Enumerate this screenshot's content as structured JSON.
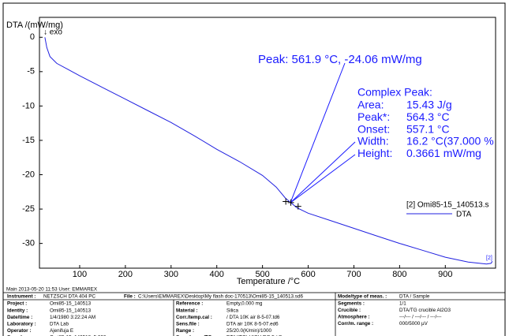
{
  "chart_data": {
    "type": "line",
    "y_label": "DTA /(mW/mg)",
    "direction_label": "↓ exo",
    "x_label": "Temperature /°C",
    "xlim": [
      12,
      1010
    ],
    "ylim": [
      -33.6,
      2.9
    ],
    "xticks": [
      100,
      200,
      300,
      400,
      500,
      600,
      700,
      800,
      900
    ],
    "yticks": [
      0,
      -5,
      -10,
      -15,
      -20,
      -25,
      -30
    ],
    "legend_title": "[2] Omi85-15_140513.s",
    "end_label": "[2]",
    "series": [
      {
        "name": "DTA",
        "color": "#2020e0",
        "x": [
          24,
          28,
          35,
          50,
          75,
          100,
          150,
          200,
          250,
          300,
          350,
          400,
          450,
          500,
          530,
          550,
          562,
          575,
          600,
          650,
          700,
          750,
          800,
          850,
          900,
          950,
          990,
          1000,
          1003
        ],
        "values": [
          0,
          -1.5,
          -2.8,
          -3.8,
          -4.7,
          -5.6,
          -7.3,
          -9.0,
          -10.7,
          -12.4,
          -14.3,
          -16.3,
          -18.1,
          -20.1,
          -21.8,
          -23.4,
          -24.06,
          -24.8,
          -25.6,
          -26.7,
          -27.8,
          -28.9,
          -30.0,
          -31.0,
          -32.0,
          -32.7,
          -33.0,
          -32.9,
          -32.6
        ]
      }
    ],
    "markers": {
      "x": [
        551,
        562,
        578
      ],
      "y": [
        -23.9,
        -24.06,
        -24.6
      ]
    },
    "peak_annotation": "Peak: 561.9 °C, -24.06 mW/mg",
    "complex_peak": {
      "title": "Complex Peak:",
      "rows": [
        [
          "Area:",
          "15.43 J/g"
        ],
        [
          "Peak*:",
          "564.3 °C"
        ],
        [
          "Onset:",
          "557.1 °C"
        ],
        [
          "Width:",
          "16.2 °C(37.000 %"
        ],
        [
          "Height:",
          "0.3661 mW/mg"
        ]
      ]
    }
  },
  "info": {
    "main": "Main  2013-05-20 11:53   User: EMMAREX",
    "instrument": [
      [
        "Instrument :",
        "NETZSCH DTA 404 PC"
      ],
      [
        "File :",
        "C:\\Users\\EMMAREX\\Desktop\\My flash doc-170513\\Omi85-15_140513.sd6"
      ]
    ],
    "columns": [
      [
        [
          "Project :",
          "Omi85-15_140513"
        ],
        [
          "Identity :",
          "Omi85-15_140513"
        ],
        [
          "Date/time :",
          "1/4/1980 3:22:24 AM"
        ],
        [
          "Laboratory :",
          "DTA Lab"
        ],
        [
          "Operator :",
          "Ajenifuja E"
        ],
        [
          "Sample :",
          "Omi85-15_140513, 5.000 mg"
        ]
      ],
      [
        [
          "Reference :",
          "Empty,0.000 mg"
        ],
        [
          "Material :",
          "Silica"
        ],
        [
          "Corr./temp.cal :",
          " / DTA 10K air 8-5-07.td6"
        ],
        [
          "Sens.file :",
          "DTA air 10K 8-5-07.ed6"
        ],
        [
          "Range :",
          "25/20.0(K/min)/1000"
        ],
        [
          "Sample car./TC :",
          "DTA/(TG) HIGH RG 5 / S"
        ]
      ],
      [
        [
          "Mode/type of meas. :",
          "DTA / Sample"
        ],
        [
          "Segments :",
          "1/1"
        ],
        [
          "Crucible :",
          "DTA/TG crucible Al2O3"
        ],
        [
          "Atmosphere :",
          "---/--- / ---/--- / ---/---"
        ],
        [
          "Corr/m. range :",
          "000/5000 µV"
        ]
      ]
    ]
  }
}
